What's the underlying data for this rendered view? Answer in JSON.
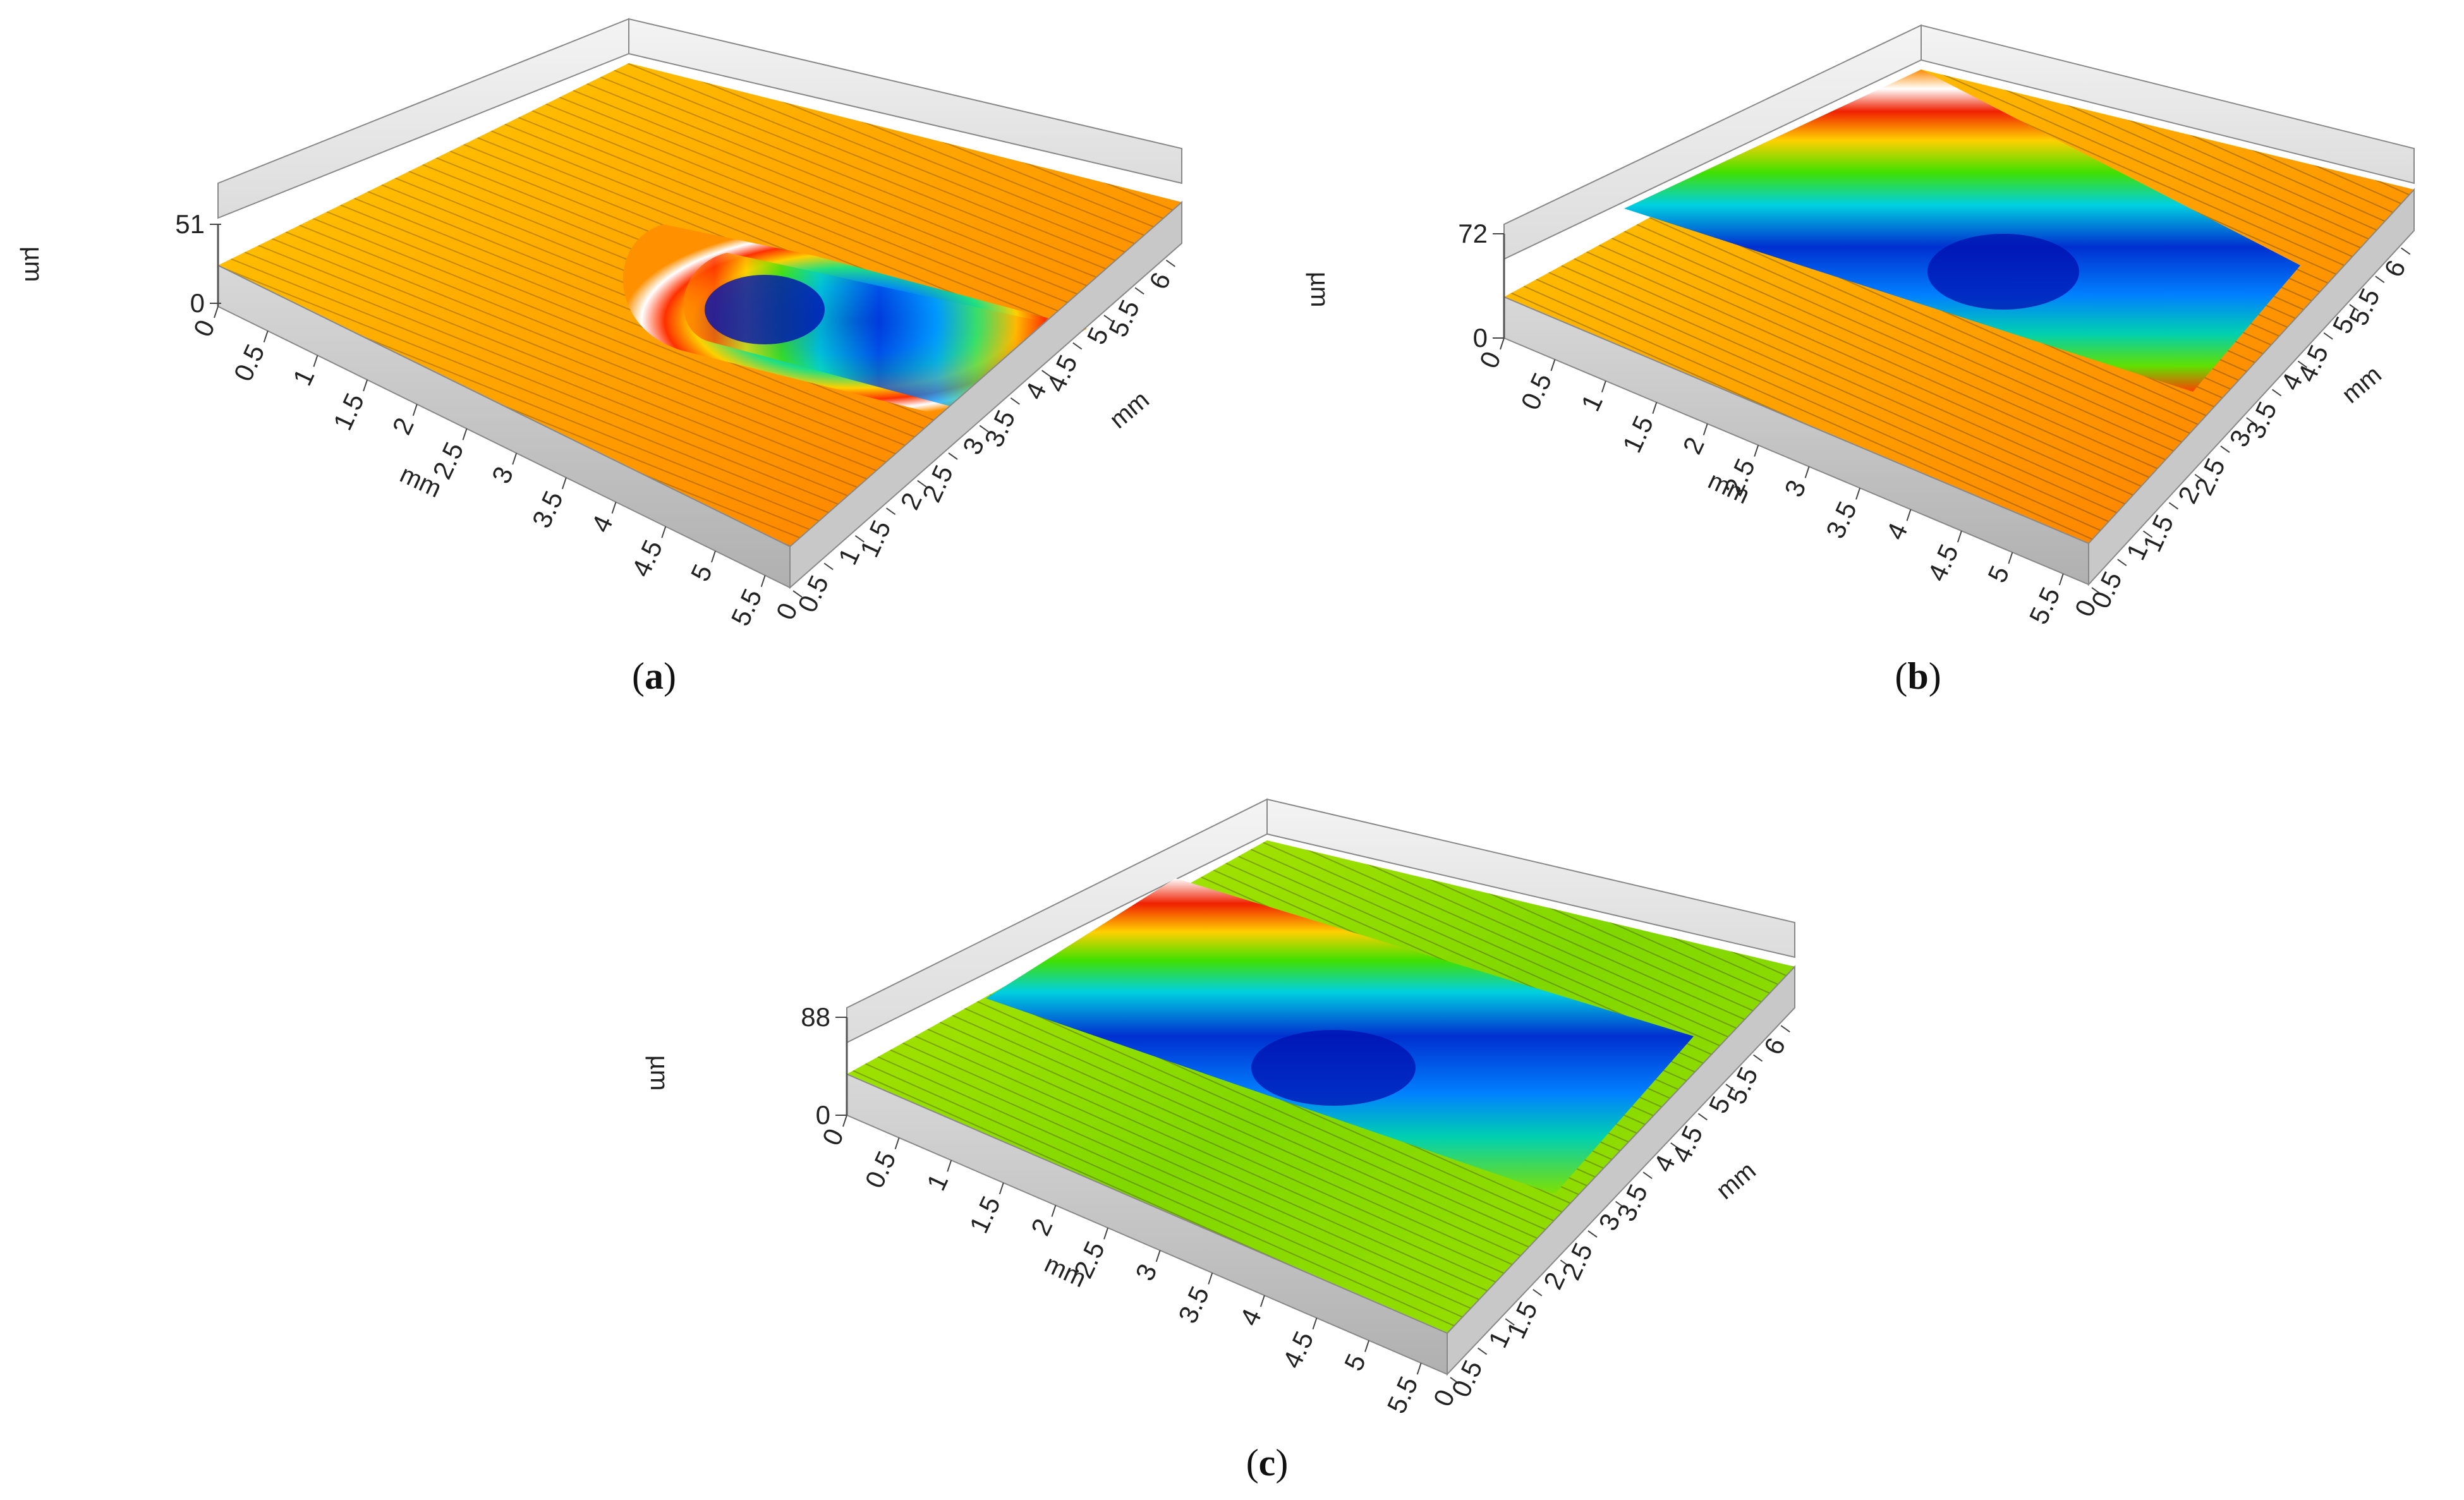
{
  "figure": {
    "panels": [
      {
        "id": "a",
        "label_open": "(",
        "label_letter": "a",
        "label_close": ")"
      },
      {
        "id": "b",
        "label_open": "(",
        "label_letter": "b",
        "label_close": ")"
      },
      {
        "id": "c",
        "label_open": "(",
        "label_letter": "c",
        "label_close": ")"
      }
    ]
  },
  "chart_data": [
    {
      "type": "heatmap",
      "panel": "a",
      "surface": "3D surface topography map",
      "x_label": "mm",
      "y_label": "mm",
      "z_label": "µm",
      "x_ticks": [
        "0",
        "0.5",
        "1",
        "1.5",
        "2",
        "2.5",
        "3",
        "3.5",
        "4",
        "4.5",
        "5",
        "5.5"
      ],
      "y_ticks": [
        "0",
        "0.5",
        "1",
        "1.5",
        "2",
        "2.5",
        "3",
        "3.5",
        "4",
        "4.5",
        "5",
        "5.5",
        "6"
      ],
      "z_ticks": [
        "0",
        "51"
      ],
      "z_range": [
        0,
        51
      ],
      "feature": "single-pass groove ending mid-surface, deepest near the end",
      "colors": [
        "#0000c8",
        "#0090ff",
        "#00e0c0",
        "#50e000",
        "#ffe000",
        "#ff8000",
        "#f03000",
        "#ffffff"
      ]
    },
    {
      "type": "heatmap",
      "panel": "b",
      "surface": "3D surface topography map",
      "x_label": "mm",
      "y_label": "mm",
      "z_label": "µm",
      "x_ticks": [
        "0",
        "0.5",
        "1",
        "1.5",
        "2",
        "2.5",
        "3",
        "3.5",
        "4",
        "4.5",
        "5",
        "5.5"
      ],
      "y_ticks": [
        "0",
        "0.5",
        "1",
        "1.5",
        "2",
        "2.5",
        "3",
        "3.5",
        "4",
        "4.5",
        "5",
        "5.5",
        "6"
      ],
      "z_ticks": [
        "0",
        "72"
      ],
      "z_range": [
        0,
        72
      ],
      "feature": "groove across full width",
      "colors": [
        "#0000c8",
        "#0090ff",
        "#00e0c0",
        "#50e000",
        "#ffe000",
        "#ff8000",
        "#f03000",
        "#ffffff"
      ]
    },
    {
      "type": "heatmap",
      "panel": "c",
      "surface": "3D surface topography map",
      "x_label": "mm",
      "y_label": "mm",
      "z_label": "µm",
      "x_ticks": [
        "0",
        "0.5",
        "1",
        "1.5",
        "2",
        "2.5",
        "3",
        "3.5",
        "4",
        "4.5",
        "5",
        "5.5"
      ],
      "y_ticks": [
        "0",
        "0.5",
        "1",
        "1.5",
        "2",
        "2.5",
        "3",
        "3.5",
        "4",
        "4.5",
        "5",
        "5.5",
        "6"
      ],
      "z_ticks": [
        "0",
        "88"
      ],
      "z_range": [
        0,
        88
      ],
      "feature": "groove across full width, base surface green",
      "colors": [
        "#0000c8",
        "#0090ff",
        "#00e0c0",
        "#50e000",
        "#ffe000",
        "#ff8000",
        "#f03000",
        "#ffffff"
      ]
    }
  ]
}
